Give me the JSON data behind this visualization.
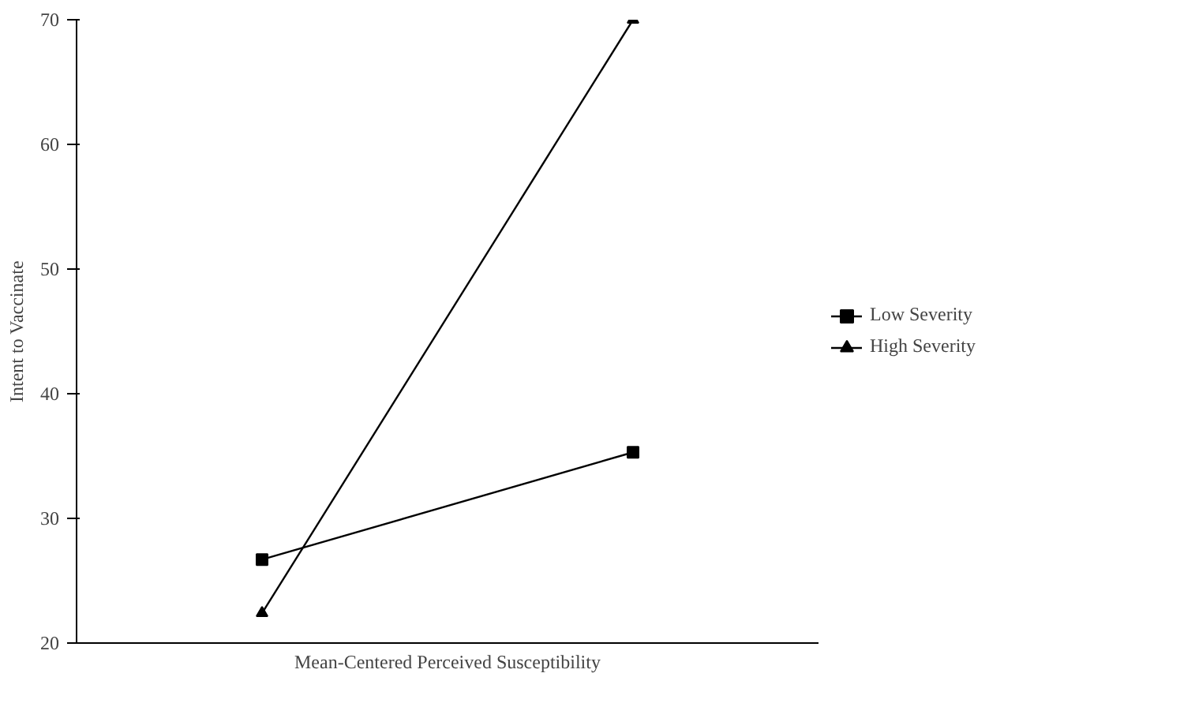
{
  "chart_data": {
    "type": "line",
    "xlabel": "Mean-Centered Perceived Susceptibility",
    "ylabel": "Intent to Vaccinate",
    "categories": [
      null,
      null
    ],
    "series": [
      {
        "name": "Low Severity",
        "color": "#000000",
        "values": [
          26.7,
          35.3
        ],
        "marker": "square"
      },
      {
        "name": "High Severity",
        "color": "#000000",
        "values": [
          22.4,
          70
        ],
        "marker": "triangle"
      }
    ],
    "ylim": [
      20,
      70
    ],
    "yticks": [
      20,
      30,
      40,
      50,
      60,
      70
    ],
    "grid": false,
    "legend": "right",
    "line_style": "solid"
  }
}
